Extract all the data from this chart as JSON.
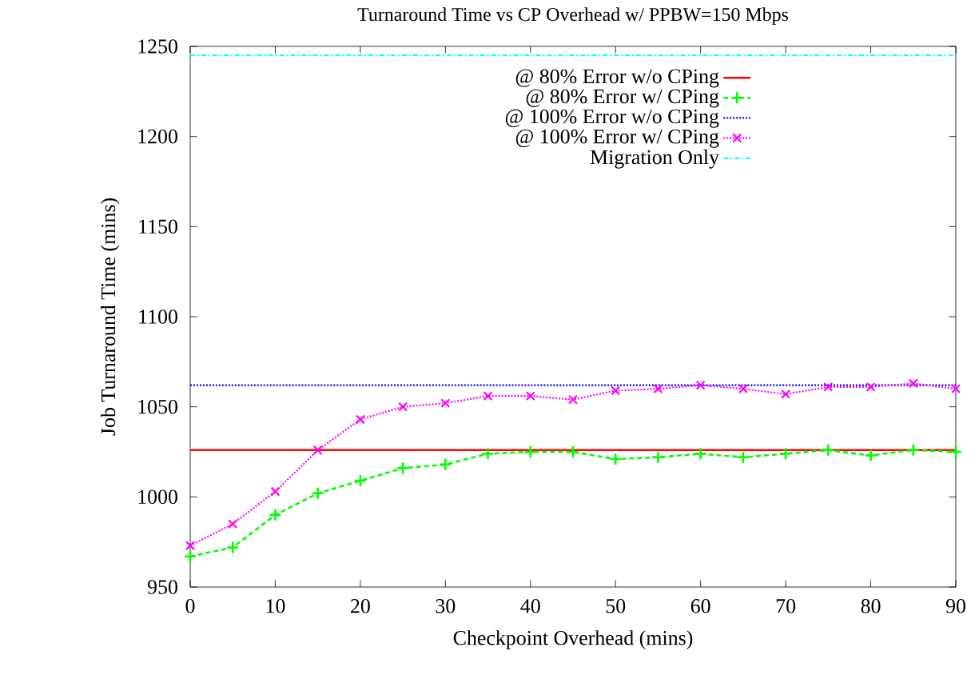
{
  "chart_data": {
    "type": "line",
    "title": "Turnaround Time vs CP Overhead w/ PPBW=150 Mbps",
    "xlabel": "Checkpoint Overhead (mins)",
    "ylabel": "Job Turnaround Time (mins)",
    "xlim": [
      0,
      90
    ],
    "ylim": [
      950,
      1250
    ],
    "xticks": [
      0,
      10,
      20,
      30,
      40,
      50,
      60,
      70,
      80,
      90
    ],
    "yticks": [
      950,
      1000,
      1050,
      1100,
      1150,
      1200,
      1250
    ],
    "legend": "top right",
    "grid": false,
    "series": [
      {
        "name": "@ 80% Error w/o CPing",
        "color": "#ff0000",
        "line_style": "solid",
        "marker": "none",
        "x": [
          0,
          90
        ],
        "values": [
          1026,
          1026
        ]
      },
      {
        "name": "@ 80% Error w/  CPing",
        "color": "#00ff00",
        "line_style": "dashed",
        "marker": "plus",
        "x": [
          0,
          5,
          10,
          15,
          20,
          25,
          30,
          35,
          40,
          45,
          50,
          55,
          60,
          65,
          70,
          75,
          80,
          85,
          90
        ],
        "values": [
          967,
          972,
          990,
          1002,
          1009,
          1016,
          1018,
          1024,
          1025,
          1025,
          1021,
          1022,
          1024,
          1022,
          1024,
          1026,
          1023,
          1026,
          1025
        ]
      },
      {
        "name": "@ 100% Error w/o CPing",
        "color": "#0000ff",
        "line_style": "dotted",
        "marker": "none",
        "x": [
          0,
          90
        ],
        "values": [
          1062,
          1062
        ]
      },
      {
        "name": "@ 100% Error w/  CPing",
        "color": "#ff00ff",
        "line_style": "dotted",
        "marker": "cross",
        "x": [
          0,
          5,
          10,
          15,
          20,
          25,
          30,
          35,
          40,
          45,
          50,
          55,
          60,
          65,
          70,
          75,
          80,
          85,
          90
        ],
        "values": [
          973,
          985,
          1003,
          1026,
          1043,
          1050,
          1052,
          1056,
          1056,
          1054,
          1059,
          1060,
          1062,
          1060,
          1057,
          1061,
          1061,
          1063,
          1060
        ]
      },
      {
        "name": "Migration Only",
        "color": "#00ffff",
        "line_style": "dashdot",
        "marker": "none",
        "x": [
          0,
          90
        ],
        "values": [
          1245,
          1245
        ]
      }
    ]
  }
}
